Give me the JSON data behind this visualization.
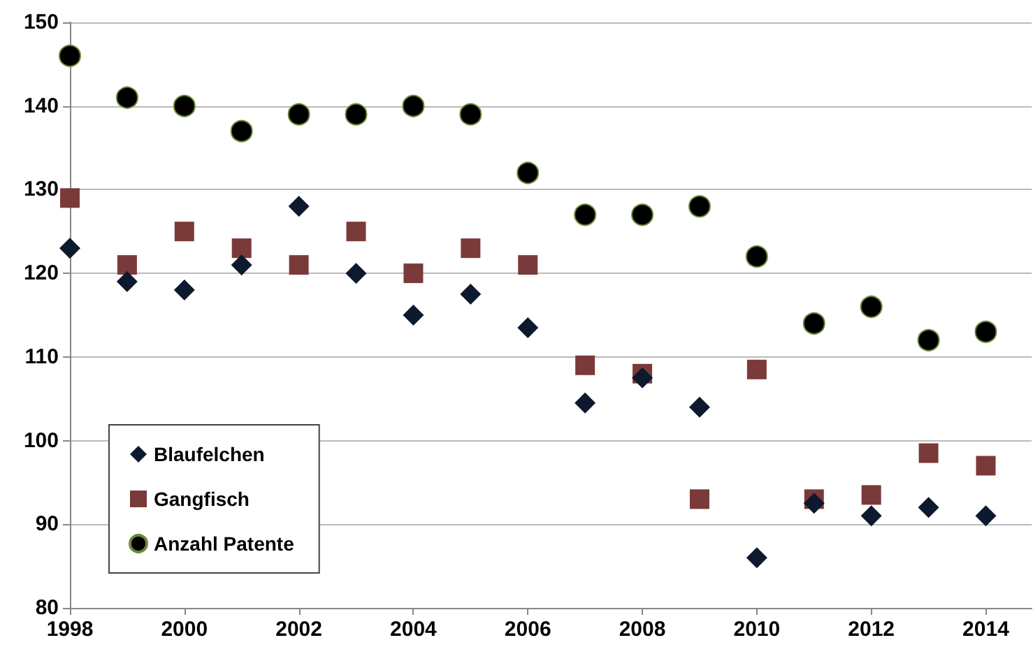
{
  "chart_data": {
    "type": "scatter",
    "x": [
      1998,
      1999,
      2000,
      2001,
      2002,
      2003,
      2004,
      2005,
      2006,
      2007,
      2008,
      2009,
      2010,
      2011,
      2012,
      2013,
      2014
    ],
    "series": [
      {
        "name": "Blaufelchen",
        "color": "#0d1a2e",
        "marker": "diamond",
        "values": [
          123,
          119,
          118,
          121,
          128,
          120,
          115,
          117.5,
          113.5,
          104.5,
          107.5,
          104,
          86,
          92.5,
          91,
          92,
          91
        ]
      },
      {
        "name": "Gangfisch",
        "color": "#7a3a3a",
        "marker": "square",
        "values": [
          129,
          121,
          125,
          123,
          121,
          125,
          120,
          123,
          121,
          109,
          108,
          93,
          108.5,
          93,
          93.5,
          98.5,
          97
        ]
      },
      {
        "name": "Anzahl Patente",
        "color": "#000000",
        "marker": "circle",
        "values": [
          146,
          141,
          140,
          137,
          139,
          139,
          140,
          139,
          132,
          127,
          127,
          128,
          122,
          114,
          116,
          112,
          113
        ]
      }
    ],
    "xlim": [
      1998,
      2014.8
    ],
    "xticks": [
      1998,
      2000,
      2002,
      2004,
      2006,
      2008,
      2010,
      2012,
      2014
    ],
    "ylim": [
      80,
      150
    ],
    "yticks": [
      80,
      90,
      100,
      110,
      120,
      130,
      140,
      150
    ],
    "grid": "y",
    "legend": "bottom left"
  }
}
